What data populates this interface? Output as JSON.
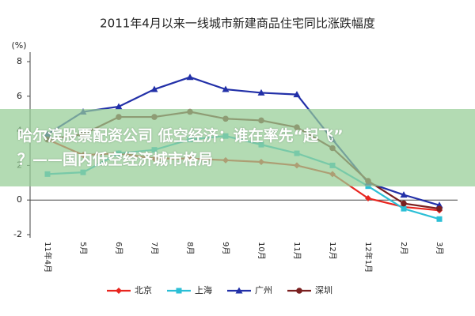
{
  "chart_data": {
    "type": "line",
    "title": "2011年4月以来一线城市新建商品住宅同比涨跌幅度",
    "y_label": "(%)",
    "categories": [
      "11年4月",
      "5月",
      "6月",
      "7月",
      "8月",
      "9月",
      "10月",
      "11月",
      "12月",
      "12年1月",
      "2月",
      "3月"
    ],
    "series": [
      {
        "name": "北京",
        "color": "#e8251f",
        "marker": "diamond",
        "values": [
          3.5,
          2.6,
          2.7,
          2.4,
          2.4,
          2.3,
          2.2,
          2.0,
          1.5,
          0.1,
          -0.4,
          -0.6
        ]
      },
      {
        "name": "上海",
        "color": "#2bbfd6",
        "marker": "square",
        "values": [
          1.5,
          1.6,
          2.7,
          2.9,
          3.5,
          3.7,
          3.2,
          2.7,
          2.0,
          0.8,
          -0.5,
          -1.1
        ]
      },
      {
        "name": "广州",
        "color": "#2230a8",
        "marker": "triangle",
        "values": [
          3.8,
          5.1,
          5.4,
          6.4,
          7.1,
          6.4,
          6.2,
          6.1,
          3.5,
          1.0,
          0.3,
          -0.3
        ]
      },
      {
        "name": "深圳",
        "color": "#7a1f1f",
        "marker": "circle",
        "values": [
          3.5,
          3.8,
          4.8,
          4.8,
          5.1,
          4.7,
          4.6,
          4.2,
          3.0,
          1.1,
          -0.2,
          -0.5
        ]
      }
    ],
    "ylim": [
      -2,
      8
    ],
    "yticks": [
      -2,
      0,
      2,
      4,
      6,
      8
    ],
    "grid": false,
    "legend": "bottom"
  },
  "banner": {
    "lines": [
      "哈尔滨股票配资公司 低空经济：谁在率先“起飞”",
      "？——国内低空经济城市格局"
    ]
  }
}
